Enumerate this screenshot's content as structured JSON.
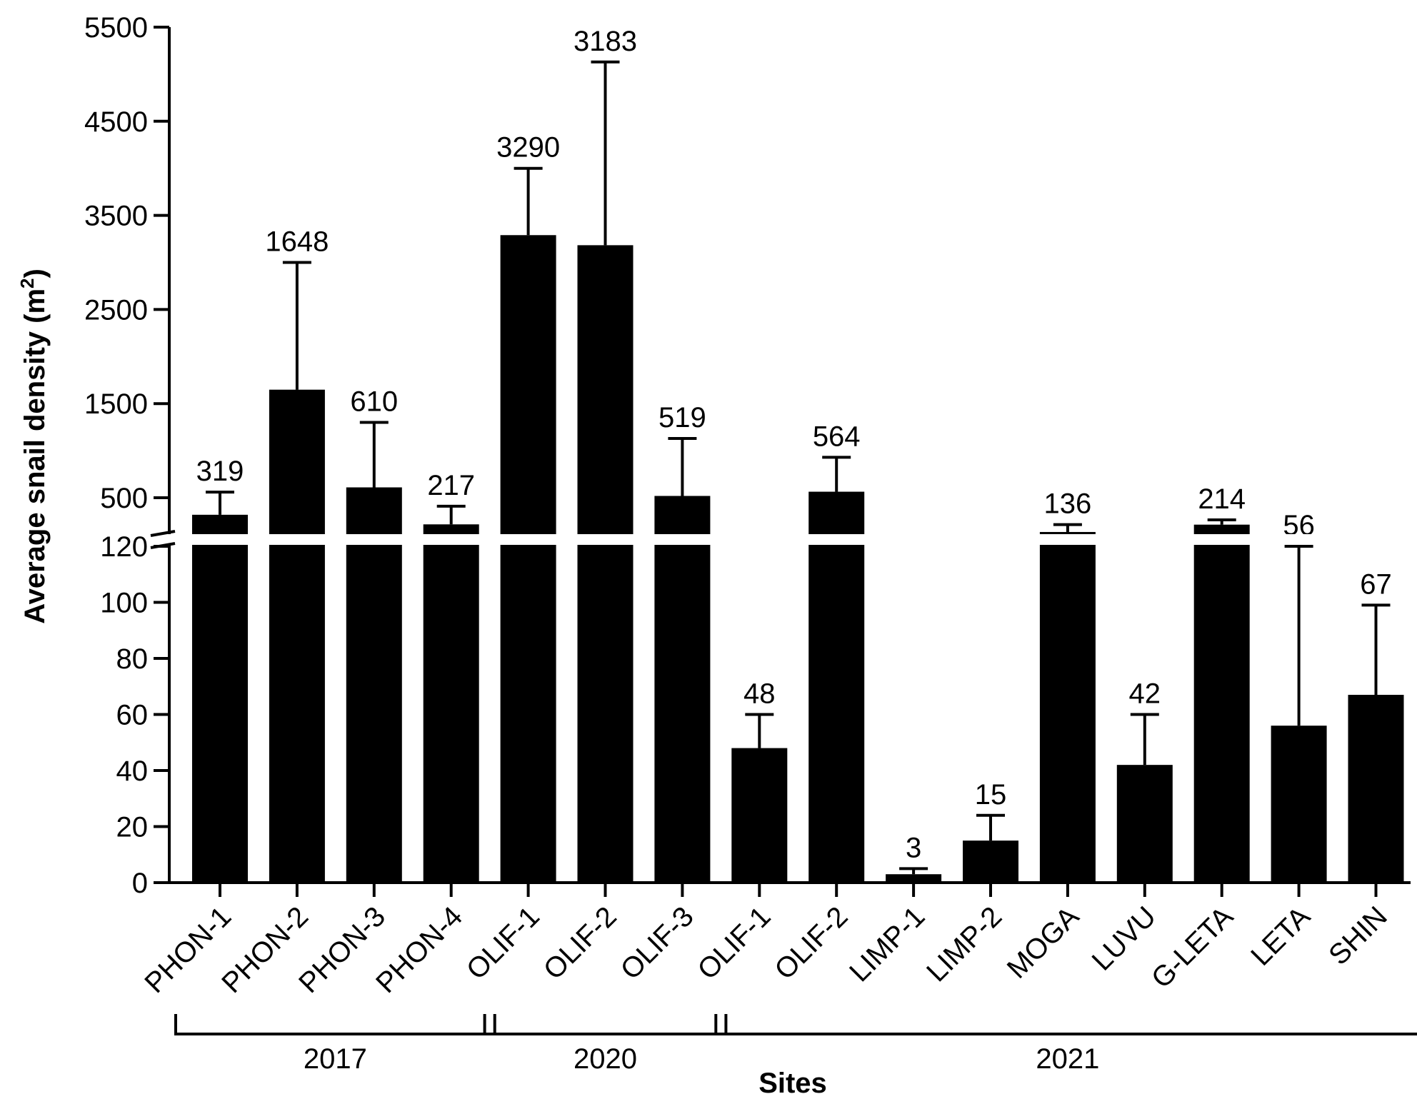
{
  "chart_data": {
    "type": "bar",
    "title": "",
    "xlabel": "Sites",
    "ylabel": {
      "text": "Average snail density (m",
      "sup": "2",
      "close": ")"
    },
    "y_axis_break": {
      "lower_range": [
        0,
        120
      ],
      "upper_range": [
        120,
        5500
      ]
    },
    "y_ticks_lower": [
      "0",
      "20",
      "40",
      "60",
      "80",
      "100",
      "120"
    ],
    "y_ticks_upper": [
      "500",
      "1500",
      "2500",
      "3500",
      "4500",
      "5500"
    ],
    "categories": [
      "PHON-1",
      "PHON-2",
      "PHON-3",
      "PHON-4",
      "OLIF-1",
      "OLIF-2",
      "OLIF-3",
      "OLIF-1",
      "OLIF-2",
      "LIMP-1",
      "LIMP-2",
      "MOGA",
      "LUVU",
      "G-LETA",
      "LETA",
      "SHIN"
    ],
    "values": [
      319,
      1648,
      610,
      217,
      3290,
      3183,
      519,
      48,
      564,
      3,
      15,
      136,
      42,
      214,
      56,
      67
    ],
    "error_upper": [
      560,
      3000,
      1300,
      410,
      4000,
      5130,
      1130,
      60,
      930,
      5,
      24,
      215,
      60,
      265,
      120,
      99
    ],
    "data_labels": [
      "319",
      "1648",
      "610",
      "217",
      "3290",
      "3183",
      "519",
      "48",
      "564",
      "3",
      "15",
      "136",
      "42",
      "214",
      "56",
      "67"
    ],
    "groups": [
      {
        "label": "2017",
        "from": 0,
        "to": 3
      },
      {
        "label": "2020",
        "from": 4,
        "to": 6
      },
      {
        "label": "2021",
        "from": 7,
        "to": 15
      }
    ],
    "bar_color": "#000000",
    "grid": false,
    "legend": "none"
  }
}
